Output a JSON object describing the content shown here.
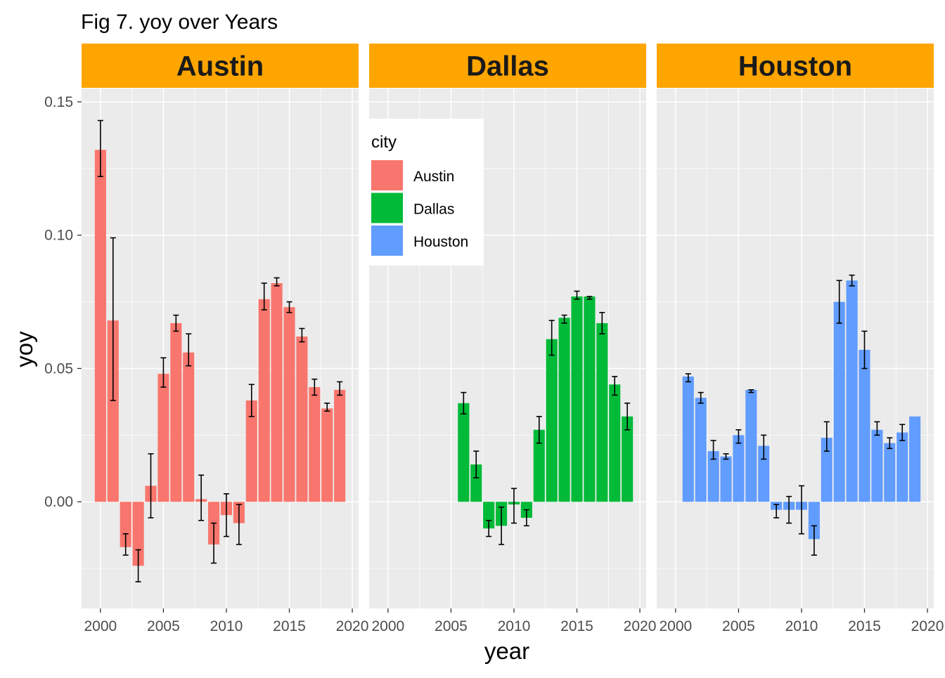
{
  "chart_data": {
    "type": "bar",
    "title": "Fig 7. yoy over Years",
    "xlabel": "year",
    "ylabel": "yoy",
    "xlim": [
      1998.5,
      2020.5
    ],
    "ylim": [
      -0.04,
      0.155
    ],
    "x_ticks": [
      "2000",
      "2005",
      "2010",
      "2015",
      "2020"
    ],
    "y_ticks": [
      "0.00",
      "0.05",
      "0.10",
      "0.15"
    ],
    "grid": true,
    "facet_strip_color": "#FFA500",
    "panel_background": "#EBEBEB",
    "legend": {
      "title": "city",
      "position": "inside-top-left of Dallas panel",
      "entries": [
        "Austin",
        "Dallas",
        "Houston"
      ]
    },
    "panels": [
      {
        "facet": "Austin",
        "color": "#F8766D",
        "x": [
          2000,
          2001,
          2002,
          2003,
          2004,
          2005,
          2006,
          2007,
          2008,
          2009,
          2010,
          2011,
          2012,
          2013,
          2014,
          2015,
          2016,
          2017,
          2018,
          2019
        ],
        "values": [
          0.132,
          0.068,
          -0.017,
          -0.024,
          0.006,
          0.048,
          0.067,
          0.056,
          0.001,
          -0.016,
          -0.005,
          -0.008,
          0.038,
          0.076,
          0.082,
          0.073,
          0.062,
          0.043,
          0.035,
          0.042
        ],
        "err_lo": [
          0.122,
          0.038,
          -0.02,
          -0.03,
          -0.006,
          0.043,
          0.064,
          0.051,
          -0.007,
          -0.023,
          -0.013,
          -0.016,
          0.032,
          0.072,
          0.081,
          0.071,
          0.06,
          0.04,
          0.034,
          0.04
        ],
        "err_hi": [
          0.143,
          0.099,
          -0.012,
          -0.018,
          0.018,
          0.054,
          0.07,
          0.063,
          0.01,
          -0.008,
          0.003,
          -0.001,
          0.044,
          0.082,
          0.084,
          0.075,
          0.065,
          0.046,
          0.037,
          0.045
        ]
      },
      {
        "facet": "Dallas",
        "color": "#00BA38",
        "x": [
          2006,
          2007,
          2008,
          2009,
          2010,
          2011,
          2012,
          2013,
          2014,
          2015,
          2016,
          2017,
          2018,
          2019
        ],
        "values": [
          0.037,
          0.014,
          -0.01,
          -0.009,
          -0.001,
          -0.006,
          0.027,
          0.061,
          0.069,
          0.077,
          0.077,
          0.067,
          0.044,
          0.032
        ],
        "err_lo": [
          0.033,
          0.009,
          -0.013,
          -0.016,
          -0.008,
          -0.009,
          0.022,
          0.055,
          0.067,
          0.076,
          0.076,
          0.063,
          0.04,
          0.027
        ],
        "err_hi": [
          0.041,
          0.019,
          -0.007,
          -0.002,
          0.005,
          -0.003,
          0.032,
          0.068,
          0.07,
          0.079,
          0.077,
          0.071,
          0.047,
          0.037
        ]
      },
      {
        "facet": "Houston",
        "color": "#619CFF",
        "x": [
          2001,
          2002,
          2003,
          2004,
          2005,
          2006,
          2007,
          2008,
          2009,
          2010,
          2011,
          2012,
          2013,
          2014,
          2015,
          2016,
          2017,
          2018,
          2019
        ],
        "values": [
          0.047,
          0.039,
          0.019,
          0.017,
          0.025,
          0.042,
          0.021,
          -0.003,
          -0.003,
          -0.003,
          -0.014,
          0.024,
          0.075,
          0.083,
          0.057,
          0.027,
          0.022,
          0.026,
          0.032
        ],
        "err_lo": [
          0.045,
          0.037,
          0.016,
          0.016,
          0.022,
          0.041,
          0.016,
          -0.006,
          -0.008,
          -0.012,
          -0.02,
          0.019,
          0.067,
          0.081,
          0.05,
          0.025,
          0.02,
          0.023,
          null
        ],
        "err_hi": [
          0.048,
          0.041,
          0.023,
          0.018,
          0.027,
          0.042,
          0.025,
          -0.001,
          0.002,
          0.006,
          -0.009,
          0.03,
          0.083,
          0.085,
          0.064,
          0.03,
          0.024,
          0.029,
          null
        ]
      }
    ]
  }
}
